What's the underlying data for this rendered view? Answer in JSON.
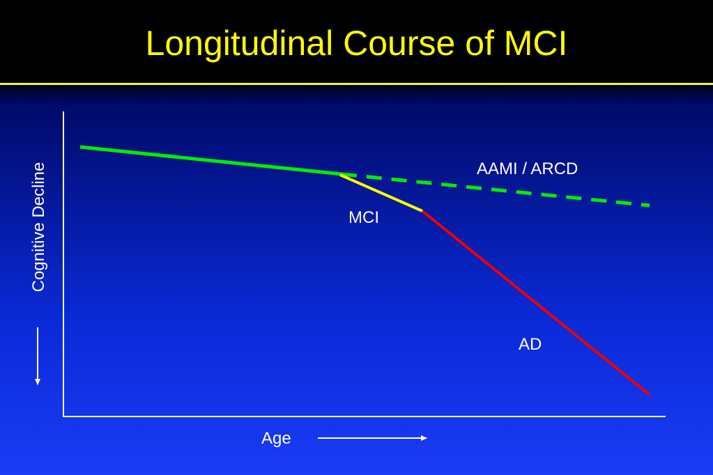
{
  "title": "Longitudinal Course of MCI",
  "axes": {
    "x_label": "Age",
    "y_label": "Cognitive Decline"
  },
  "segments": {
    "normal_label": "AAMI / ARCD",
    "mci_label": "MCI",
    "ad_label": "AD"
  },
  "colors": {
    "background_top": "#000000",
    "background_bottom": "#1a3cf4",
    "title": "#ffff00",
    "normal_aging": "#00ee00",
    "mci": "#ffff00",
    "ad": "#ee0000",
    "axes": "#ffffff"
  }
}
